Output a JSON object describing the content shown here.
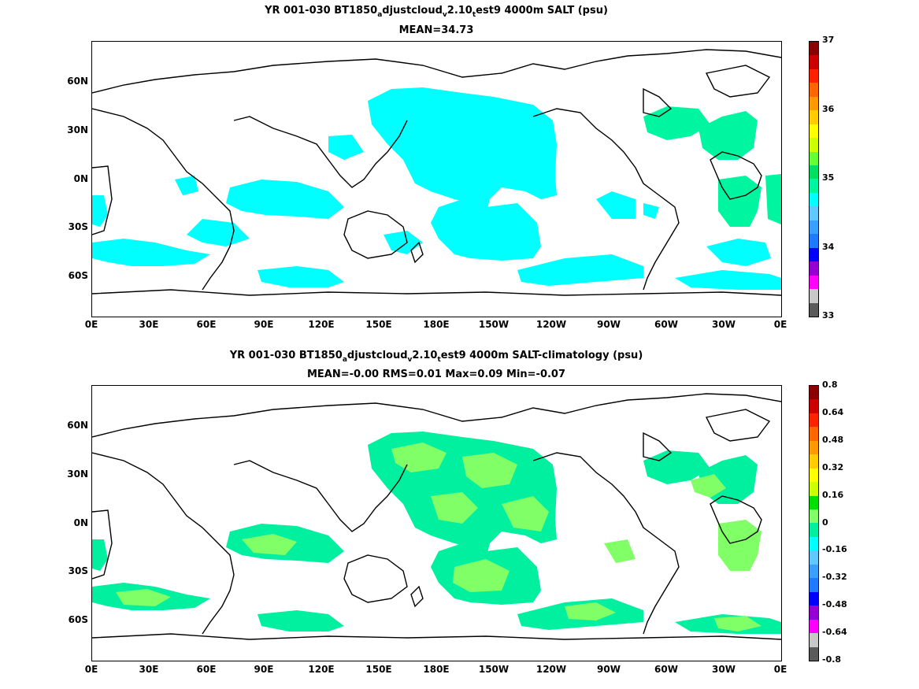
{
  "panel1": {
    "title_parts": {
      "a": "YR 001-030 BT1850",
      "b": "a",
      "c": "djustcloud",
      "d": "v",
      "e": "2.10",
      "f": "t",
      "g": "est9 4000m SALT (psu)"
    },
    "subtitle": "MEAN=34.73",
    "colorbar": {
      "ticks": [
        "33",
        "34",
        "35",
        "36",
        "37"
      ],
      "colors": [
        "#5a5a5a",
        "#c8c8c8",
        "#ff00ff",
        "#9400d3",
        "#0000ff",
        "#1e7bff",
        "#3aa0ff",
        "#5ec8ff",
        "#00ffff",
        "#00f5a0",
        "#00e060",
        "#66ff33",
        "#ccff00",
        "#ffff00",
        "#ffcc00",
        "#ff9900",
        "#ff6600",
        "#ff2200",
        "#cc0000",
        "#8b0000"
      ]
    }
  },
  "panel2": {
    "title_parts": {
      "a": "YR 001-030 BT1850",
      "b": "a",
      "c": "djustcloud",
      "d": "v",
      "e": "2.10",
      "f": "t",
      "g": "est9 4000m SALT-climatology (psu)"
    },
    "subtitle": "MEAN=-0.00   RMS=0.01   Max=0.09   Min=-0.07",
    "colorbar": {
      "ticks": [
        "-0.8",
        "-0.64",
        "-0.48",
        "-0.32",
        "-0.16",
        "0",
        "0.16",
        "0.32",
        "0.48",
        "0.64",
        "0.8"
      ],
      "colors": [
        "#5a5a5a",
        "#c8c8c8",
        "#ff00ff",
        "#9400d3",
        "#0000ff",
        "#1e7bff",
        "#3aa0ff",
        "#5ec8ff",
        "#00ffff",
        "#00f0a0",
        "#80ff66",
        "#00e000",
        "#ccff00",
        "#ffff00",
        "#ffcc00",
        "#ff9900",
        "#ff6600",
        "#ff2200",
        "#cc0000",
        "#8b0000"
      ]
    }
  },
  "axes": {
    "lat_labels": [
      "60N",
      "30N",
      "0N",
      "30S",
      "60S"
    ],
    "lon_labels": [
      "0E",
      "30E",
      "60E",
      "90E",
      "120E",
      "150E",
      "180E",
      "150W",
      "120W",
      "90W",
      "60W",
      "30W",
      "0E"
    ]
  },
  "colors": {
    "fill_top": "#00ffff",
    "fill_top_green": "#00f5a0",
    "fill_bot_a": "#00f0a0",
    "fill_bot_b": "#80ff66",
    "coast": "#000000"
  }
}
